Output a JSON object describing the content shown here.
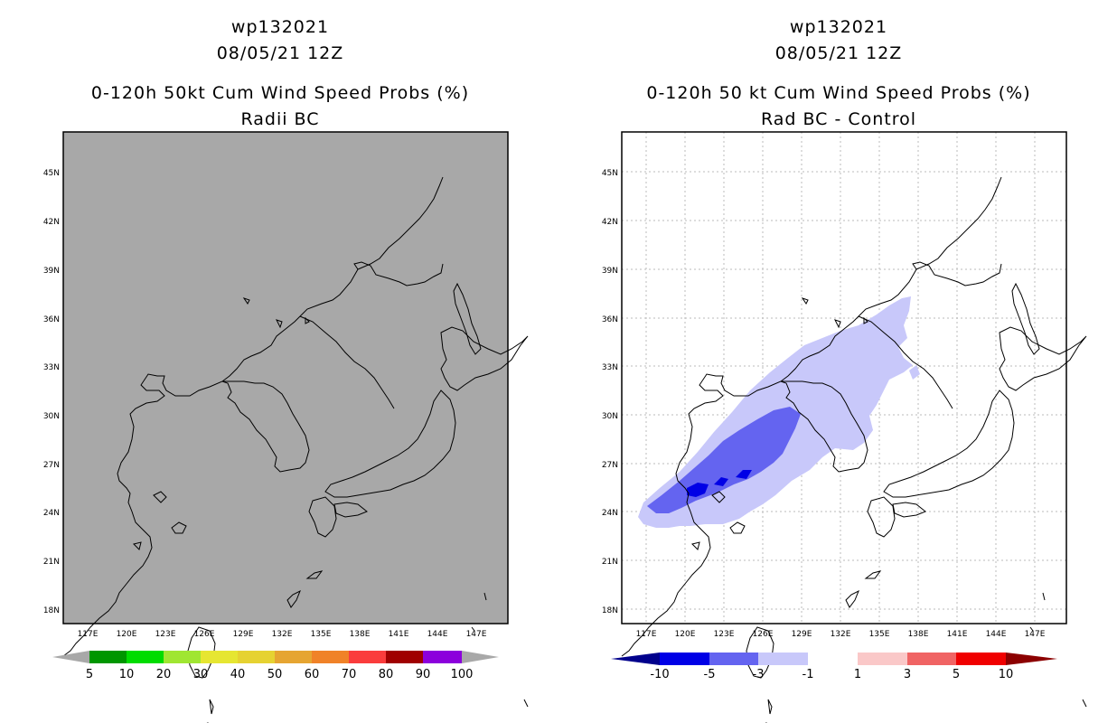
{
  "left_panel": {
    "title_lines": [
      "wp132021",
      "08/05/21 12Z"
    ],
    "subtitle_lines": [
      "0-120h 50kt Cum Wind Speed Probs (%)",
      "Radii BC"
    ],
    "map_fill": "#a8a8a8",
    "colorbar_labels": [
      "5",
      "10",
      "20",
      "30",
      "40",
      "50",
      "60",
      "70",
      "80",
      "90",
      "100"
    ],
    "colorbar_colors": [
      "#a8a8a8",
      "#009600",
      "#00dc00",
      "#a0e632",
      "#e6e632",
      "#e6d232",
      "#e6a532",
      "#f08228",
      "#fa3c3c",
      "#a00000",
      "#8c00dc",
      "#a8a8a8"
    ]
  },
  "right_panel": {
    "title_lines": [
      "wp132021",
      "08/05/21 12Z"
    ],
    "subtitle_lines": [
      "0-120h 50 kt Cum Wind Speed Probs (%)",
      "Rad BC - Control"
    ],
    "colorbar_labels": [
      "-10",
      "-5",
      "-3",
      "-1",
      "1",
      "3",
      "5",
      "10"
    ],
    "colorbar_colors": [
      "#00008c",
      "#0000e6",
      "#6464f0",
      "#c8c8fa",
      "#ffffff",
      "#fac8c8",
      "#f06464",
      "#f00000",
      "#8c0000"
    ]
  },
  "axes": {
    "lat_labels": [
      "45N",
      "42N",
      "39N",
      "36N",
      "33N",
      "30N",
      "27N",
      "24N",
      "21N",
      "18N"
    ],
    "lon_labels": [
      "117E",
      "120E",
      "123E",
      "126E",
      "129E",
      "132E",
      "135E",
      "138E",
      "141E",
      "144E",
      "147E"
    ]
  }
}
